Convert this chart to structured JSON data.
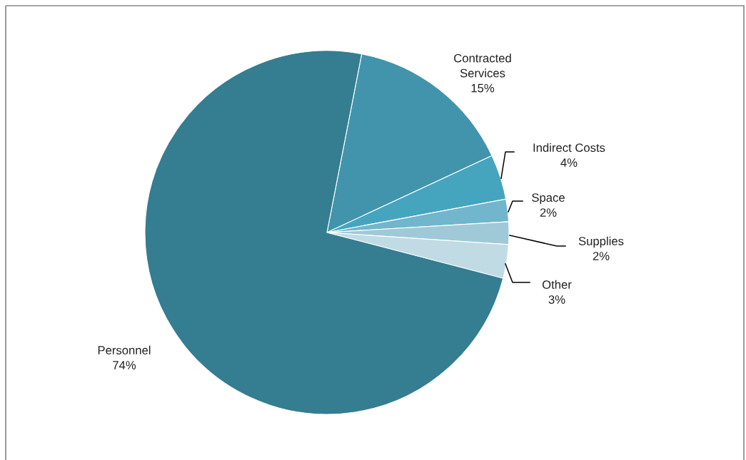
{
  "chart_data": {
    "type": "pie",
    "categories": [
      "Contracted\nServices",
      "Indirect Costs",
      "Space",
      "Supplies",
      "Other",
      "Personnel"
    ],
    "values": [
      15,
      4,
      2,
      2,
      3,
      74
    ],
    "colors": [
      "#4194ab",
      "#46a5be",
      "#71b6cc",
      "#a0c9d8",
      "#c0dbe4",
      "#357d91"
    ],
    "value_labels": [
      "15%",
      "4%",
      "2%",
      "2%",
      "3%",
      "74%"
    ]
  }
}
